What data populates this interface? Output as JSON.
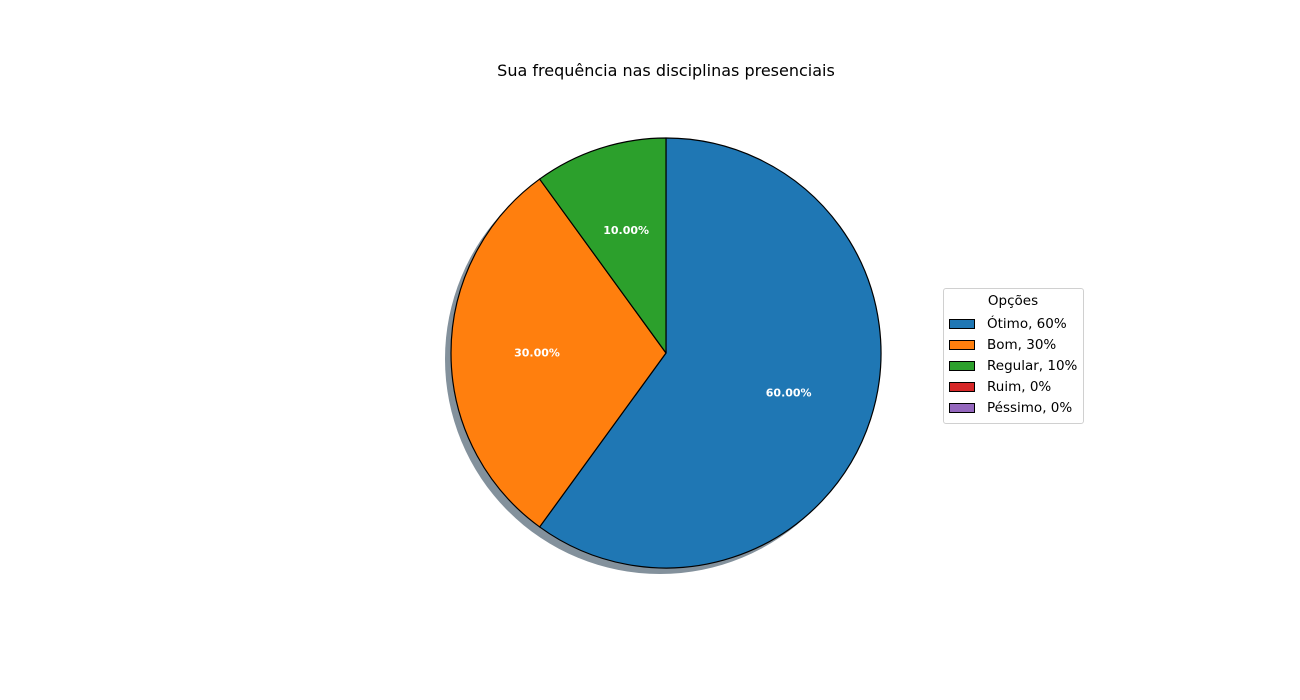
{
  "chart_data": {
    "type": "pie",
    "title": "Sua frequência nas disciplinas presenciais",
    "categories": [
      "Ótimo",
      "Bom",
      "Regular",
      "Ruim",
      "Péssimo"
    ],
    "values": [
      60,
      30,
      10,
      0,
      0
    ],
    "slice_labels": [
      "60.00%",
      "30.00%",
      "10.00%",
      "",
      ""
    ],
    "colors": [
      "#1f77b4",
      "#ff7f0e",
      "#2ca02c",
      "#d62728",
      "#9467bd"
    ],
    "shadow": true,
    "legend": {
      "title": "Opções",
      "placement": "center-right",
      "entries": [
        "Ótimo, 60%",
        "Bom, 30%",
        "Regular, 10%",
        "Ruim, 0%",
        "Péssimo, 0%"
      ]
    }
  }
}
